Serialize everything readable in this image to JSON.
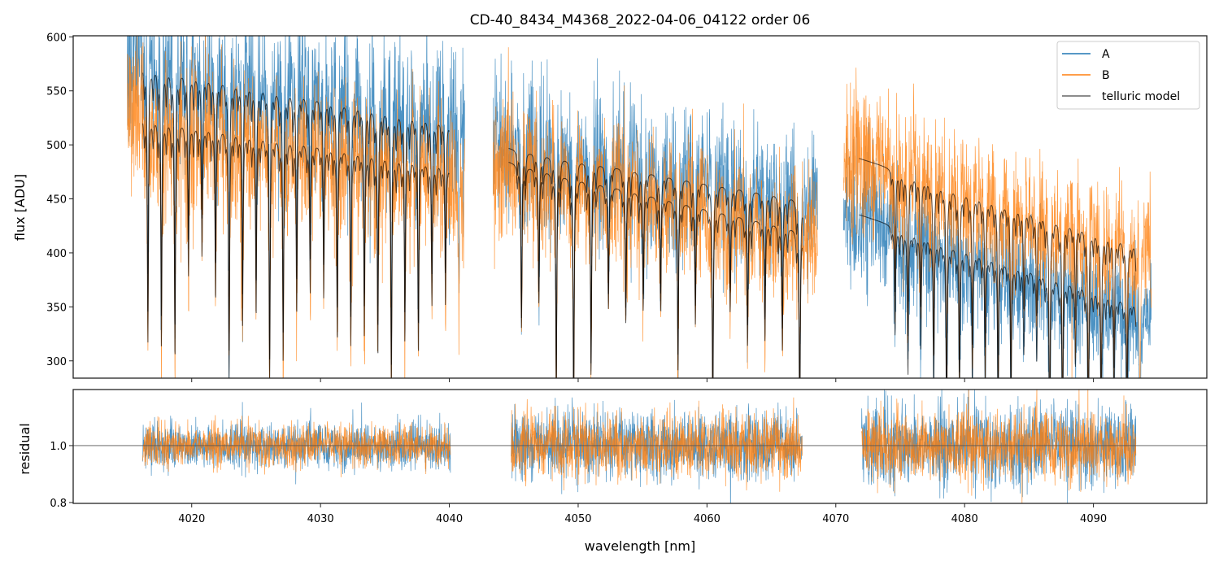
{
  "chart_data": [
    {
      "type": "line",
      "title": "CD-40_8434_M4368_2022-04-06_04122  order 06",
      "xlabel": "",
      "ylabel": "flux [ADU]",
      "xlim": [
        4010.8,
        4098.8
      ],
      "ylim": [
        284,
        601
      ],
      "yticks": [
        300,
        350,
        400,
        450,
        500,
        550,
        600
      ],
      "ytick_labels": [
        "300",
        "350",
        "400",
        "450",
        "500",
        "550",
        "600"
      ],
      "xticks": [
        4020,
        4030,
        4040,
        4050,
        4060,
        4070,
        4080,
        4090
      ],
      "legend": {
        "placement": "top-right",
        "entries": [
          "A",
          "B",
          "telluric model"
        ]
      },
      "series_colors": {
        "A": "#1f77b4",
        "B": "#ff7f0e",
        "telluric model": "#333333"
      },
      "segments": [
        {
          "x_range": [
            4015.0,
            4041.2
          ],
          "A_continuum": [
            585,
            525
          ],
          "B_continuum": [
            528,
            478
          ],
          "model_A": [
            578,
            520
          ],
          "model_B": [
            530,
            480
          ],
          "line_spacing_nm": 1.05,
          "first_line": 4016.6
        },
        {
          "x_range": [
            4043.4,
            4068.6
          ],
          "A_continuum": [
            505,
            450
          ],
          "B_continuum": [
            488,
            420
          ],
          "model_A": [
            500,
            448
          ],
          "model_B": [
            488,
            418
          ],
          "line_spacing_nm": 1.35,
          "first_line": 4045.6
        },
        {
          "x_range": [
            4070.6,
            4094.5
          ],
          "A_continuum": [
            438,
            345
          ],
          "B_continuum": [
            492,
            405
          ],
          "model_A": [
            440,
            350
          ],
          "model_B": [
            492,
            405
          ],
          "line_spacing_nm": 1.0,
          "first_line": 4074.6
        }
      ],
      "grid": false
    },
    {
      "type": "line",
      "xlabel": "wavelength [nm]",
      "ylabel": "residual",
      "xlim": [
        4010.8,
        4098.8
      ],
      "ylim": [
        0.797,
        1.197
      ],
      "yticks": [
        0.8,
        1.0
      ],
      "ytick_labels": [
        "0.8",
        "1.0"
      ],
      "xticks": [
        4020,
        4030,
        4040,
        4050,
        4060,
        4070,
        4080,
        4090
      ],
      "xtick_labels": [
        "4020",
        "4030",
        "4040",
        "4050",
        "4060",
        "4070",
        "4080",
        "4090"
      ],
      "reference_line": 1.0,
      "segments": [
        {
          "x_range": [
            4016.2,
            4040.1
          ],
          "scatter": 0.04
        },
        {
          "x_range": [
            4044.8,
            4067.4
          ],
          "scatter": 0.06
        },
        {
          "x_range": [
            4072.0,
            4093.3
          ],
          "scatter": 0.07
        }
      ]
    }
  ]
}
